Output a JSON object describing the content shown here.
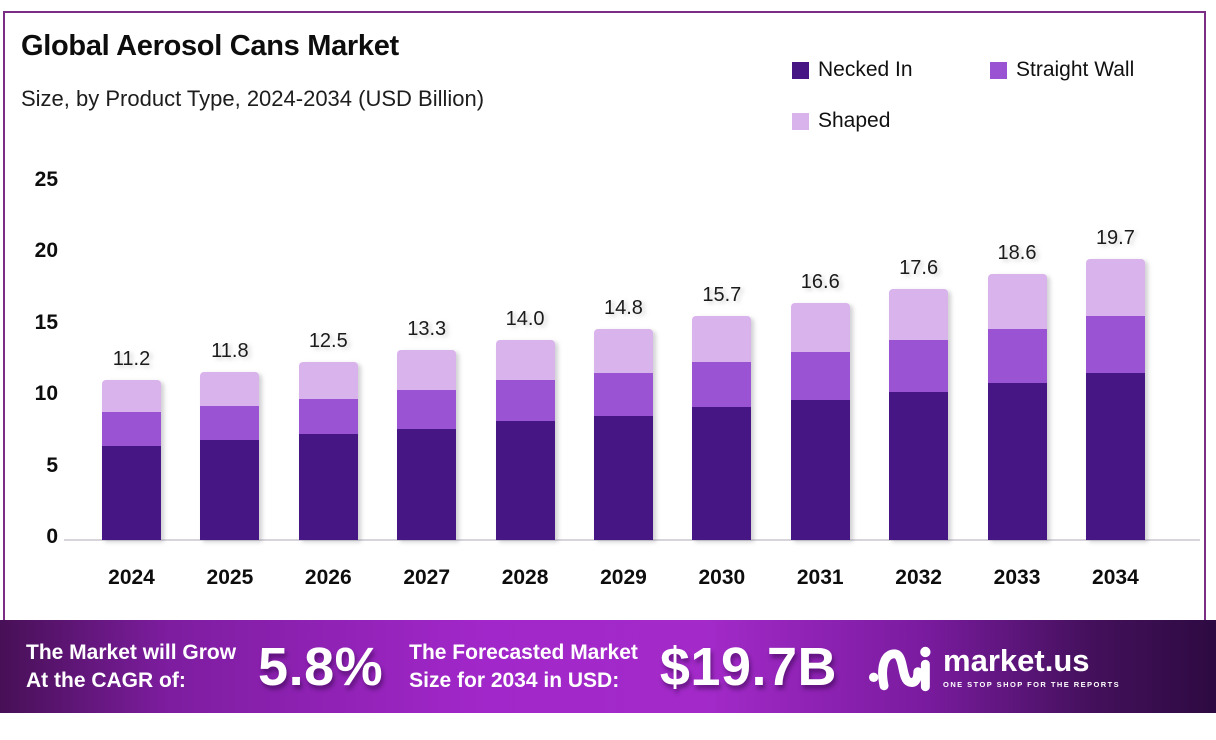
{
  "header": {
    "title": "Global Aerosol Cans Market",
    "subtitle": "Size, by Product Type, 2024-2034 (USD Billion)"
  },
  "colors": {
    "necked_in": "#471685",
    "straight_wall": "#9a53d2",
    "shaped": "#d9b3ec",
    "frame_border": "#7c2e87",
    "axis_line": "#d7d5db",
    "banner_bright": "#a32ac9",
    "banner_dark_left": "#471056",
    "banner_dark_right": "#2d0a41"
  },
  "legend": {
    "items": [
      {
        "label": "Necked In",
        "color": "#471685"
      },
      {
        "label": "Straight Wall",
        "color": "#9a53d2"
      },
      {
        "label": "Shaped",
        "color": "#d9b3ec"
      }
    ]
  },
  "chart_data": {
    "type": "bar",
    "stacked": true,
    "title": "Global Aerosol Cans Market Size, by Product Type, 2024-2034 (USD Billion)",
    "categories": [
      "2024",
      "2025",
      "2026",
      "2027",
      "2028",
      "2029",
      "2030",
      "2031",
      "2032",
      "2033",
      "2034"
    ],
    "series": [
      {
        "name": "Necked In",
        "color": "#471685",
        "values": [
          6.6,
          7.0,
          7.4,
          7.8,
          8.3,
          8.7,
          9.3,
          9.8,
          10.4,
          11.0,
          11.7
        ]
      },
      {
        "name": "Straight Wall",
        "color": "#9a53d2",
        "values": [
          2.4,
          2.4,
          2.5,
          2.7,
          2.9,
          3.0,
          3.2,
          3.4,
          3.6,
          3.8,
          4.0
        ]
      },
      {
        "name": "Shaped",
        "color": "#d9b3ec",
        "values": [
          2.2,
          2.4,
          2.6,
          2.8,
          2.8,
          3.1,
          3.2,
          3.4,
          3.6,
          3.8,
          4.0
        ]
      }
    ],
    "totals": [
      11.2,
      11.8,
      12.5,
      13.3,
      14.0,
      14.8,
      15.7,
      16.6,
      17.6,
      18.6,
      19.7
    ],
    "xlabel": "",
    "ylabel": "",
    "ylim": [
      0,
      25
    ],
    "y_ticks": [
      0,
      5,
      10,
      15,
      20,
      25
    ],
    "grid": false,
    "legend_position": "top-right",
    "data_labels": "totals above bars, one decimal"
  },
  "banner": {
    "growth_label_line1": "The Market will Grow",
    "growth_label_line2": "At the CAGR of:",
    "cagr_value": "5.8%",
    "forecast_label_line1": "The Forecasted Market",
    "forecast_label_line2": "Size for 2034 in USD:",
    "forecast_value": "$19.7B",
    "brand_name": "market.us",
    "brand_tagline": "ONE STOP SHOP FOR THE REPORTS"
  }
}
